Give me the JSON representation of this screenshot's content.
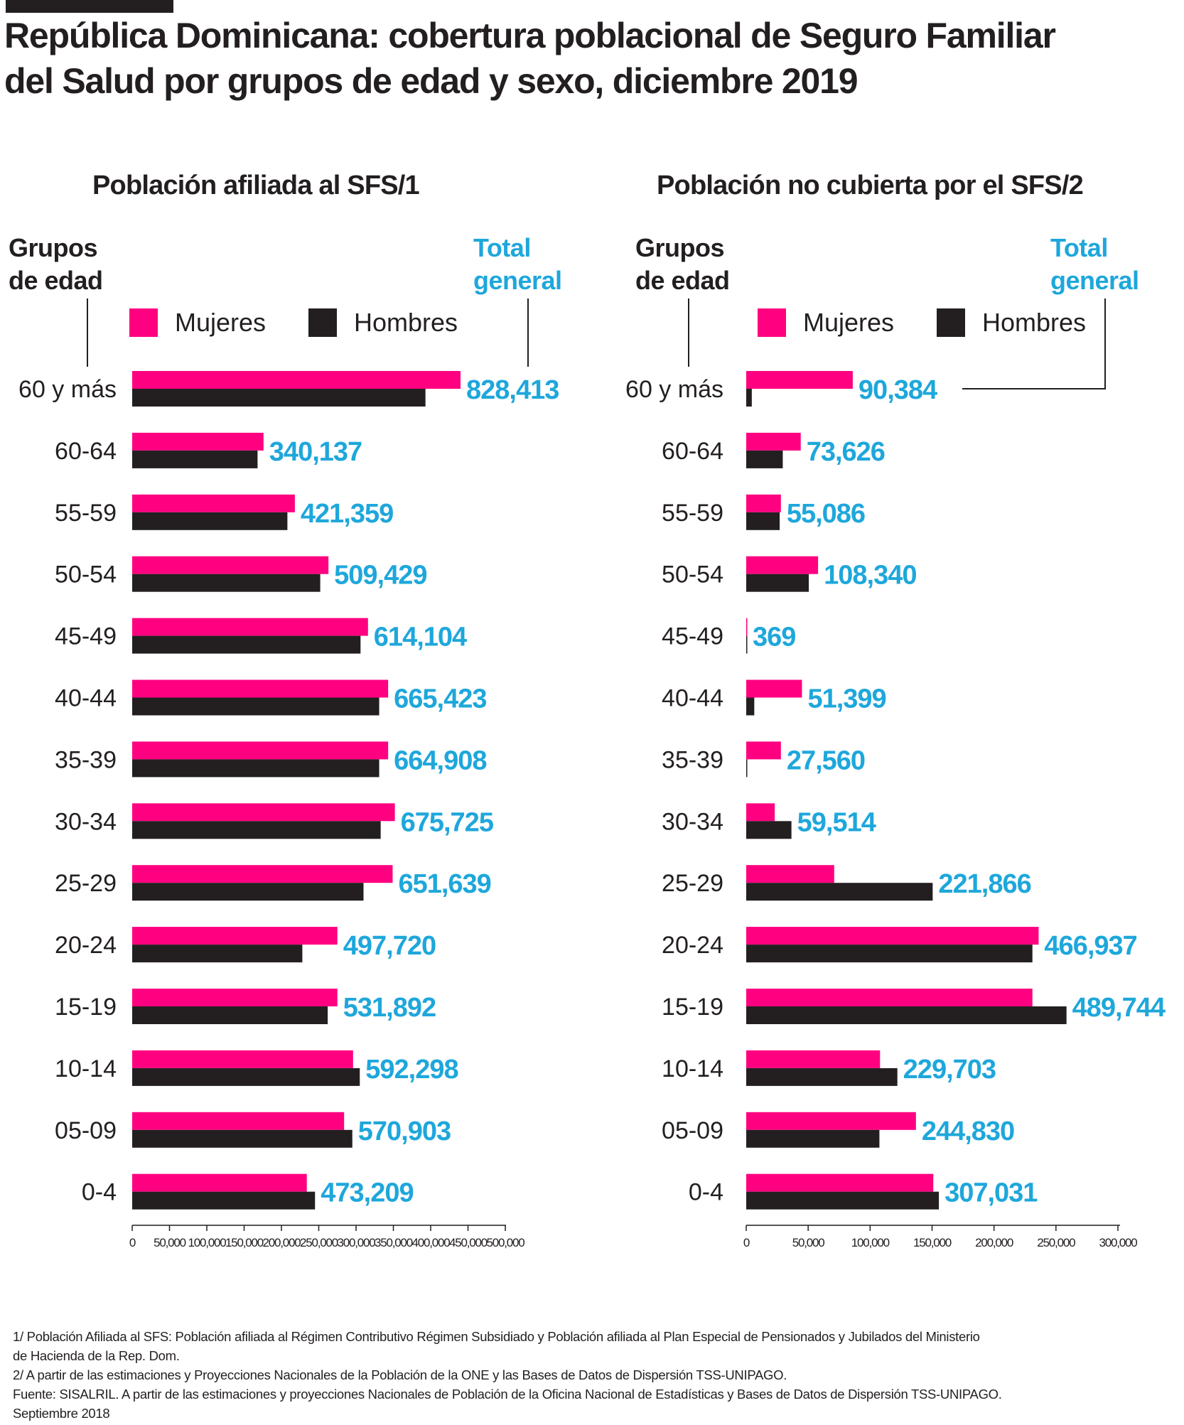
{
  "title_line1": "República Dominicana: cobertura poblacional de Seguro Familiar",
  "title_line2": "del Salud por grupos de edad y sexo, diciembre 2019",
  "colors": {
    "mujeres": "#ff0080",
    "hombres": "#231f20",
    "total": "#1ea7db",
    "text": "#231f20"
  },
  "panels": [
    {
      "title": "Población afiliada al  SFS/1",
      "grupos_line1": "Grupos",
      "grupos_line2": "de edad",
      "total_line1": "Total",
      "total_line2": "general",
      "legend_mujeres": "Mujeres",
      "legend_hombres": "Hombres"
    },
    {
      "title": "Población no cubierta por el SFS/2",
      "grupos_line1": "Grupos",
      "grupos_line2": "de edad",
      "total_line1": "Total",
      "total_line2": "general",
      "legend_mujeres": "Mujeres",
      "legend_hombres": "Hombres"
    }
  ],
  "chart_data": [
    {
      "type": "bar",
      "orientation": "horizontal",
      "title": "Población afiliada al  SFS/1",
      "categories": [
        "60 y más",
        "60-64",
        "55-59",
        "50-54",
        "45-49",
        "40-44",
        "35-39",
        "30-34",
        "25-29",
        "20-24",
        "15-19",
        "10-14",
        "05-09",
        "0-4"
      ],
      "series": [
        {
          "name": "Mujeres",
          "values": [
            440000,
            176000,
            218000,
            263000,
            316000,
            343000,
            343000,
            352000,
            349000,
            275000,
            275000,
            296000,
            284000,
            234000
          ]
        },
        {
          "name": "Hombres",
          "values": [
            393000,
            168000,
            208000,
            252000,
            306000,
            331000,
            331000,
            333000,
            310000,
            228000,
            262000,
            305000,
            295000,
            245000
          ]
        }
      ],
      "totals": [
        828413,
        340137,
        421359,
        509429,
        614104,
        665423,
        664908,
        675725,
        651639,
        497720,
        531892,
        592298,
        570903,
        473209
      ],
      "total_labels": [
        "828,413",
        "340,137",
        "421,359",
        "509,429",
        "614,104",
        "665,423",
        "664,908",
        "675,725",
        "651,639",
        "497,720",
        "531,892",
        "592,298",
        "570,903",
        "473,209"
      ],
      "xlim": [
        0,
        500000
      ],
      "xticks": [
        0,
        50000,
        100000,
        150000,
        200000,
        250000,
        300000,
        350000,
        400000,
        450000,
        500000
      ],
      "xtick_labels": [
        "0",
        "50,000",
        "100,000",
        "150,000",
        "200,000",
        "250,000",
        "300,000",
        "350,000",
        "400,000",
        "450,000",
        "500,000"
      ],
      "ylabel": "Grupos de edad",
      "legend": "top"
    },
    {
      "type": "bar",
      "orientation": "horizontal",
      "title": "Población no cubierta por el SFS/2",
      "categories": [
        "60 y más",
        "60-64",
        "55-59",
        "50-54",
        "45-49",
        "40-44",
        "35-39",
        "30-34",
        "25-29",
        "20-24",
        "15-19",
        "10-14",
        "05-09",
        "0-4"
      ],
      "series": [
        {
          "name": "Mujeres",
          "values": [
            86000,
            44000,
            28000,
            58000,
            600,
            45000,
            28000,
            23000,
            71000,
            236000,
            231000,
            108000,
            137000,
            151000
          ]
        },
        {
          "name": "Hombres",
          "values": [
            4500,
            29500,
            27000,
            50500,
            600,
            6500,
            600,
            36500,
            150500,
            231000,
            258500,
            122000,
            107500,
            155500
          ]
        }
      ],
      "totals": [
        90384,
        73626,
        55086,
        108340,
        369,
        51399,
        27560,
        59514,
        221866,
        466937,
        489744,
        229703,
        244830,
        307031
      ],
      "total_labels": [
        "90,384",
        "73,626",
        "55,086",
        "108,340",
        "369",
        "51,399",
        "27,560",
        "59,514",
        "221,866",
        "466,937",
        "489,744",
        "229,703",
        "244,830",
        "307,031"
      ],
      "xlim": [
        0,
        300000
      ],
      "xticks": [
        0,
        50000,
        100000,
        150000,
        200000,
        250000,
        300000
      ],
      "xtick_labels": [
        "0",
        "50,000",
        "100,000",
        "150,000",
        "200,000",
        "250,000",
        "300,000"
      ],
      "ylabel": "Grupos de edad",
      "legend": "top"
    }
  ],
  "notes": {
    "line1": "1/ Población Afiliada al  SFS: Población afiliada al Régimen Contributivo Régimen Subsidiado y Población afiliada al Plan Especial de Pensionados y Jubilados del Ministerio",
    "line2": "de Hacienda de la Rep. Dom.",
    "line3": "2/ A partir de las estimaciones y Proyecciones Nacionales de la Población de la ONE y las Bases de Datos de Dispersión TSS-UNIPAGO.",
    "line4": "Fuente: SISALRIL.  A partir de las estimaciones y proyecciones Nacionales de Población de la Oficina Nacional de Estadísticas y Bases de Datos de Dispersión TSS-UNIPAGO.",
    "line5": "Septiembre 2018"
  }
}
